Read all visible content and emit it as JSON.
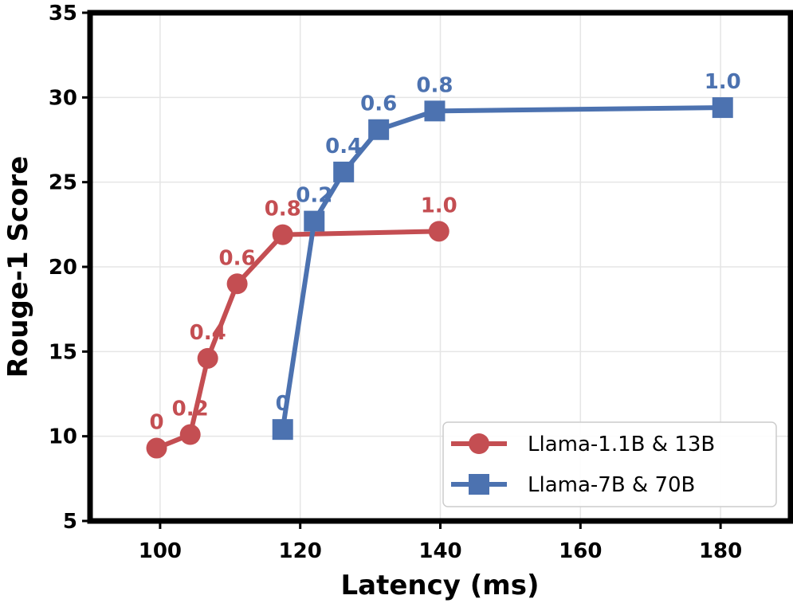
{
  "chart_data": {
    "type": "line",
    "title": "",
    "xlabel": "Latency (ms)",
    "ylabel": "Rouge-1 Score",
    "xlim": [
      90,
      190
    ],
    "ylim": [
      5,
      35
    ],
    "xticks": [
      100,
      120,
      140,
      160,
      180
    ],
    "yticks": [
      5,
      10,
      15,
      20,
      25,
      30,
      35
    ],
    "grid": true,
    "legend_position": "bottom-right",
    "series": [
      {
        "name": "Llama-1.1B & 13B",
        "color": "#c44e52",
        "marker": "circle",
        "points": [
          {
            "x": 99.5,
            "y": 9.3,
            "label": "0"
          },
          {
            "x": 104.3,
            "y": 10.1,
            "label": "0.2"
          },
          {
            "x": 106.8,
            "y": 14.6,
            "label": "0.4"
          },
          {
            "x": 111.0,
            "y": 19.0,
            "label": "0.6"
          },
          {
            "x": 117.5,
            "y": 21.9,
            "label": "0.8"
          },
          {
            "x": 139.8,
            "y": 22.1,
            "label": "1.0"
          }
        ]
      },
      {
        "name": "Llama-7B & 70B",
        "color": "#4c72b0",
        "marker": "square",
        "points": [
          {
            "x": 117.5,
            "y": 10.4,
            "label": "0"
          },
          {
            "x": 122.0,
            "y": 22.7,
            "label": "0.2"
          },
          {
            "x": 126.2,
            "y": 25.6,
            "label": "0.4"
          },
          {
            "x": 131.2,
            "y": 28.1,
            "label": "0.6"
          },
          {
            "x": 139.2,
            "y": 29.2,
            "label": "0.8"
          },
          {
            "x": 180.3,
            "y": 29.4,
            "label": "1.0"
          }
        ]
      }
    ]
  }
}
